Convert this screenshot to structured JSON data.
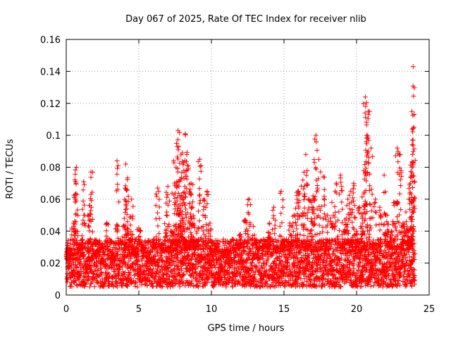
{
  "chart_data": {
    "type": "scatter",
    "title": "Day 067 of 2025, Rate Of TEC Index for receiver nlib",
    "xlabel": "GPS time / hours",
    "ylabel": "ROTI / TECUs",
    "xlim": [
      0,
      25
    ],
    "ylim": [
      0,
      0.16
    ],
    "x_ticks": [
      "0",
      "5",
      "10",
      "15",
      "20",
      "25"
    ],
    "y_ticks": [
      "0",
      "0.02",
      "0.04",
      "0.06",
      "0.08",
      "0.1",
      "0.12",
      "0.14",
      "0.16"
    ],
    "grid": true,
    "marker": "+",
    "color": "#ff0000",
    "series": [
      {
        "x": [
          0.1,
          0.3,
          0.5,
          0.6,
          0.7,
          0.9,
          1.2,
          1.5,
          1.6,
          1.7,
          2.0,
          2.4,
          2.8,
          3.2,
          3.5,
          4.0,
          4.1,
          4.2,
          4.3,
          4.5,
          4.8,
          5.0,
          5.3,
          5.6,
          6.0,
          6.3,
          6.6,
          6.9,
          7.0,
          7.2,
          7.4,
          7.5,
          7.6,
          7.7,
          7.8,
          7.9,
          8.0,
          8.1,
          8.2,
          8.3,
          8.5,
          8.6,
          8.7,
          8.8,
          9.0,
          9.2,
          9.5,
          9.7,
          9.9,
          10.1,
          10.3,
          10.6,
          10.9,
          11.2,
          11.6,
          12.0,
          12.3,
          12.6,
          12.9,
          13.2,
          13.6,
          14.0,
          14.3,
          14.5,
          14.8,
          15.0,
          15.4,
          15.7,
          15.9,
          16.0,
          16.3,
          16.5,
          16.7,
          16.9,
          17.0,
          17.2,
          17.4,
          17.7,
          18.0,
          18.3,
          18.6,
          18.9,
          19.2,
          19.4,
          19.6,
          19.8,
          20.0,
          20.2,
          20.4,
          20.5,
          20.6,
          20.7,
          20.8,
          21.0,
          21.3,
          21.6,
          21.9,
          22.1,
          22.4,
          22.6,
          22.8,
          23.0,
          23.2,
          23.4,
          23.6,
          23.7,
          23.8,
          23.85,
          23.9,
          23.95
        ],
        "y": [
          0.02,
          0.028,
          0.045,
          0.063,
          0.08,
          0.032,
          0.071,
          0.018,
          0.056,
          0.077,
          0.024,
          0.03,
          0.045,
          0.022,
          0.084,
          0.048,
          0.082,
          0.066,
          0.035,
          0.06,
          0.025,
          0.042,
          0.03,
          0.021,
          0.035,
          0.067,
          0.032,
          0.05,
          0.068,
          0.04,
          0.084,
          0.058,
          0.095,
          0.103,
          0.072,
          0.06,
          0.089,
          0.078,
          0.101,
          0.088,
          0.064,
          0.07,
          0.055,
          0.048,
          0.04,
          0.085,
          0.06,
          0.065,
          0.045,
          0.022,
          0.03,
          0.015,
          0.025,
          0.02,
          0.028,
          0.038,
          0.047,
          0.06,
          0.043,
          0.03,
          0.035,
          0.045,
          0.055,
          0.03,
          0.065,
          0.035,
          0.045,
          0.05,
          0.06,
          0.065,
          0.072,
          0.088,
          0.06,
          0.058,
          0.062,
          0.1,
          0.085,
          0.074,
          0.05,
          0.058,
          0.07,
          0.075,
          0.047,
          0.06,
          0.065,
          0.07,
          0.04,
          0.055,
          0.045,
          0.078,
          0.124,
          0.1,
          0.115,
          0.092,
          0.06,
          0.055,
          0.075,
          0.05,
          0.04,
          0.058,
          0.092,
          0.088,
          0.045,
          0.052,
          0.06,
          0.07,
          0.075,
          0.088,
          0.143,
          0.105
        ]
      }
    ],
    "baseline": {
      "y_min": 0.005,
      "y_max": 0.035
    }
  }
}
